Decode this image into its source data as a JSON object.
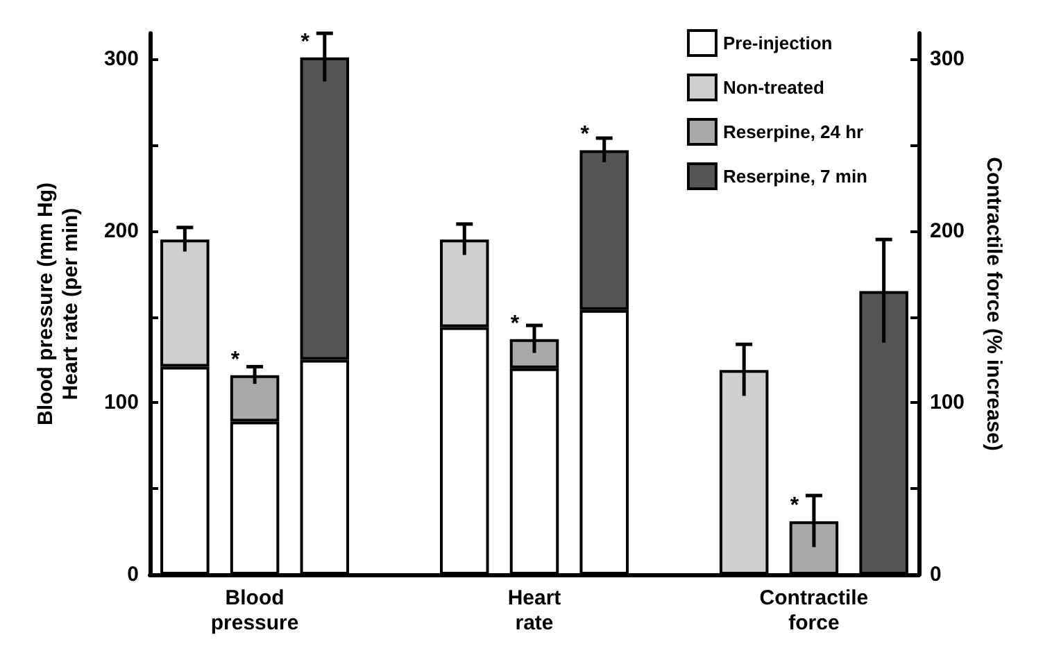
{
  "chart_data": {
    "type": "bar",
    "stacked": true,
    "categories": [
      null,
      "Blood\npressure",
      null,
      null,
      null,
      "Heart\nrate",
      null,
      null,
      null,
      "Contractile\nforce",
      null
    ],
    "series": [
      {
        "name": "Pre-injection",
        "color": "#ffffff",
        "values": [
          121,
          89,
          125,
          null,
          144,
          120,
          154,
          null,
          null,
          null,
          null
        ]
      },
      {
        "name": "Non-treated",
        "color": "#cfcfcf",
        "values": [
          74,
          null,
          null,
          null,
          51,
          null,
          null,
          null,
          null,
          null,
          null
        ],
        "errors": [
          7,
          null,
          null,
          null,
          9,
          null,
          null,
          null,
          null,
          null,
          null
        ],
        "value_labels": [
          null,
          null,
          null,
          null,
          null,
          null,
          null,
          null,
          null,
          null,
          null
        ]
      },
      {
        "name": "Reserpine, 24 hr",
        "color": "#a9a9a9",
        "values": [
          null,
          27,
          null,
          null,
          null,
          17,
          null,
          null,
          null,
          null,
          null
        ],
        "errors": [
          null,
          5,
          null,
          null,
          null,
          8,
          null,
          null,
          null,
          null,
          null
        ],
        "value_labels": [
          null,
          "*",
          null,
          null,
          null,
          "*",
          null,
          null,
          null,
          null,
          null
        ]
      },
      {
        "name": "Reserpine, 7 min",
        "color": "#555555",
        "values": [
          null,
          null,
          176,
          null,
          null,
          null,
          93,
          null,
          null,
          null,
          null
        ],
        "errors": [
          null,
          null,
          14,
          null,
          null,
          null,
          7,
          null,
          null,
          null,
          null
        ],
        "value_labels": [
          null,
          null,
          "*",
          null,
          null,
          null,
          "*",
          null,
          null,
          null,
          null
        ]
      },
      {
        "colors": [
          "#cfcfcf",
          "#a9a9a9",
          "#555555",
          "#cfcfcf",
          "#a9a9a9",
          "#555555",
          "#cfcfcf",
          "#a9a9a9",
          "#cfcfcf",
          "#a9a9a9",
          "#555555"
        ],
        "values": [
          null,
          null,
          null,
          null,
          null,
          null,
          null,
          null,
          119,
          31,
          165
        ],
        "errors": [
          null,
          null,
          null,
          null,
          null,
          null,
          null,
          null,
          15,
          15,
          30
        ],
        "value_labels": [
          null,
          null,
          null,
          null,
          null,
          null,
          null,
          null,
          null,
          "*",
          null
        ]
      }
    ],
    "ylabel": "Blood pressure (mm Hg)\nHeart rate (per min)",
    "y2label": "Contractile force (% increase)",
    "ylim": [
      0,
      315
    ],
    "yticks": [
      0,
      {
        "value": 50,
        "label": null
      },
      100,
      {
        "value": 150,
        "label": null
      },
      200,
      {
        "value": 250,
        "label": null
      },
      300
    ],
    "y2lim": [
      0,
      315
    ],
    "y2ticks": [
      0,
      {
        "value": 50,
        "label": null
      },
      100,
      {
        "value": 150,
        "label": null
      },
      200,
      {
        "value": 250,
        "label": null
      },
      300
    ],
    "grid": false,
    "legend": "top right"
  }
}
